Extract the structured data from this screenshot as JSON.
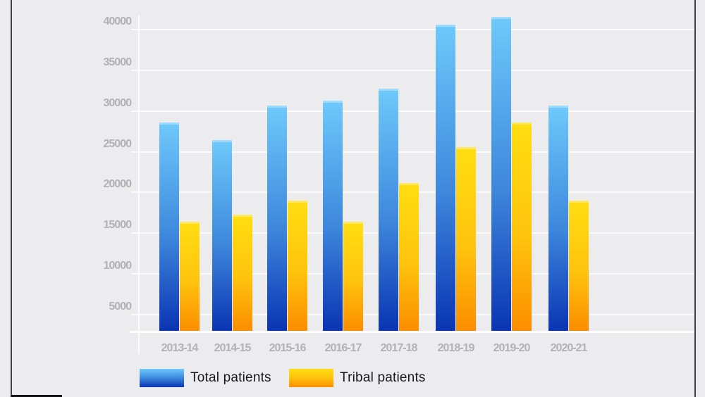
{
  "chart_data": {
    "type": "bar",
    "title": "",
    "categories": [
      "2013-14",
      "2014-15",
      "2015-16",
      "2016-17",
      "2017-18",
      "2018-19",
      "2019-20",
      "2020-21"
    ],
    "series": [
      {
        "name": "Total patients",
        "values": [
          28600,
          26400,
          30700,
          31300,
          32800,
          40600,
          41600,
          30700
        ],
        "color_top": "#6FC9FB",
        "color_mid": "#3D87DC",
        "color_bottom": "#0A34B3"
      },
      {
        "name": "Tribal patients",
        "values": [
          16400,
          17300,
          19000,
          16400,
          21200,
          25600,
          28600,
          19000
        ],
        "color_top": "#FFDE12",
        "color_mid": "#FFC30D",
        "color_bottom": "#FB8D00"
      }
    ],
    "y_ticks": [
      5000,
      10000,
      15000,
      20000,
      25000,
      30000,
      35000,
      40000
    ],
    "ylim": [
      3000,
      42500
    ],
    "xlabel": "",
    "ylabel": "",
    "grid": true,
    "legend_position": "bottom"
  },
  "colors": {
    "background": "#ECEBEE",
    "gridline": "#F5F4F8",
    "axis_label_text": "#B2B1B6",
    "legend_text": "#191919",
    "window_border": "#3F3F45"
  }
}
